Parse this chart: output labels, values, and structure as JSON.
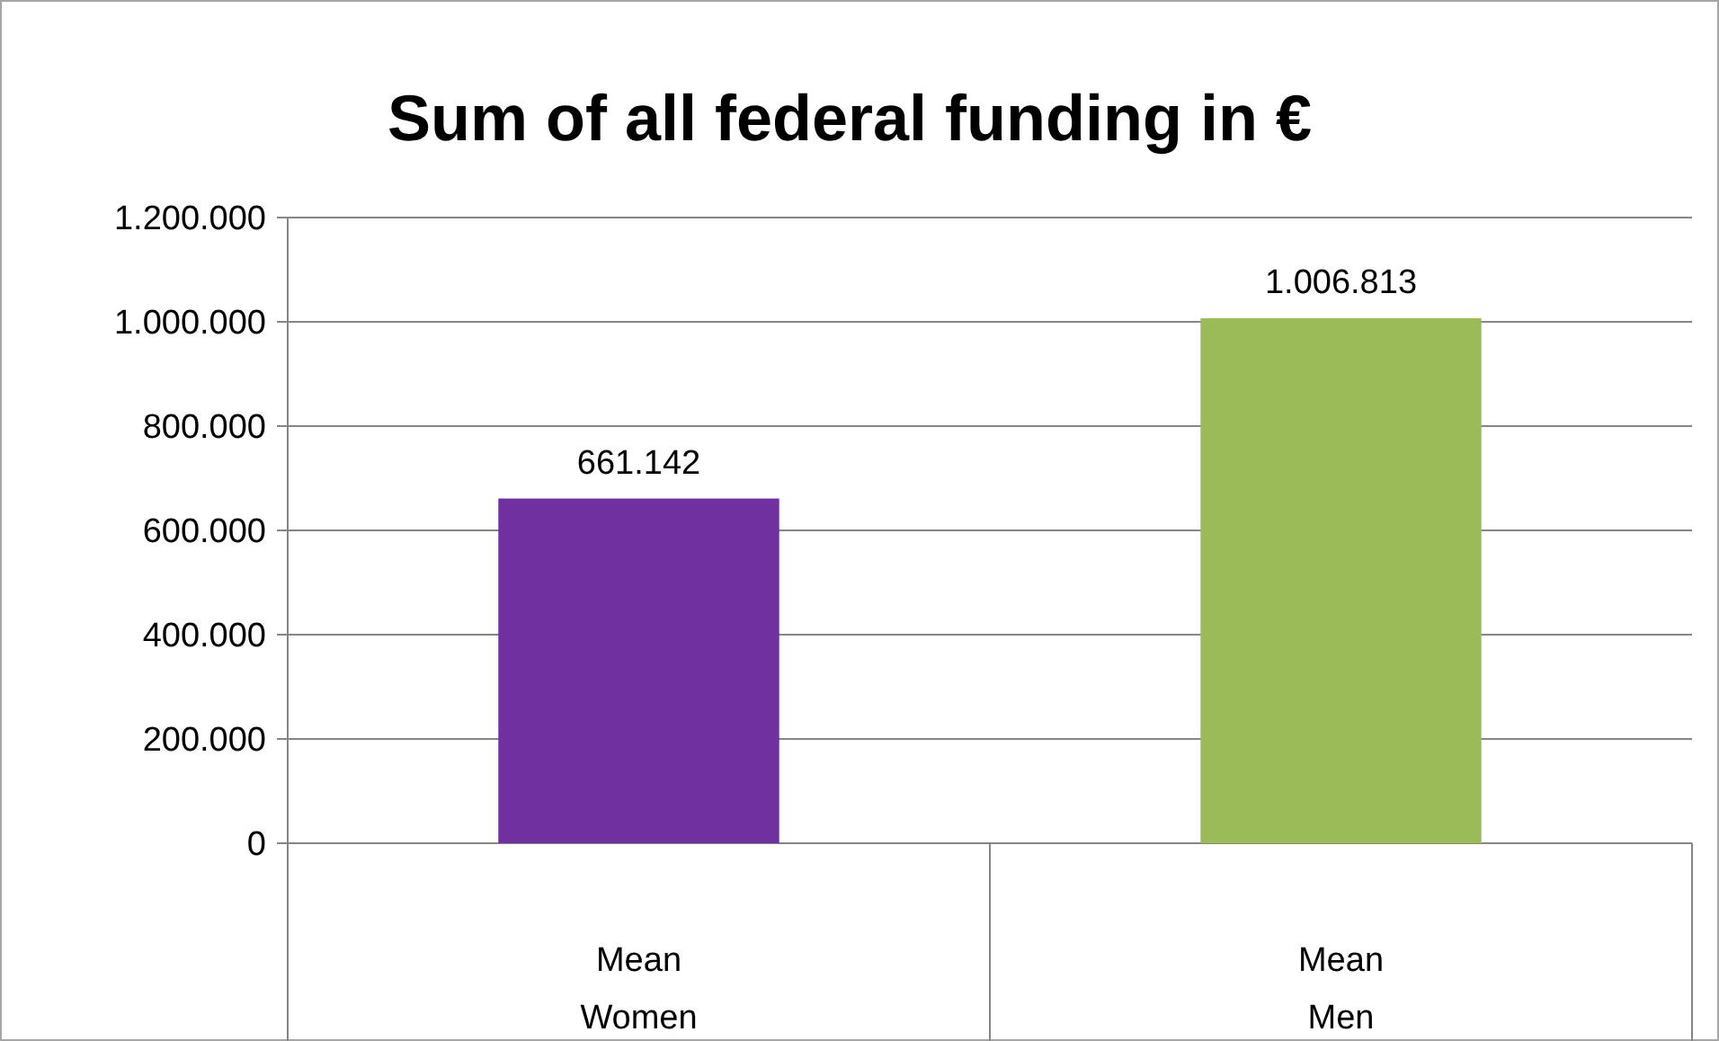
{
  "chart_data": {
    "type": "bar",
    "title": "Sum of all federal funding in €",
    "categories": [
      "Mean\nWomen",
      "Mean\nMen"
    ],
    "values": [
      661142,
      1006813
    ],
    "colors": [
      "#7030a0",
      "#9bbb59"
    ],
    "value_labels": [
      "661.142",
      "1.006.813"
    ],
    "ylim": [
      0,
      1200000
    ],
    "yticks": [
      {
        "value": 0,
        "label": "0"
      },
      {
        "value": 200000,
        "label": "200.000"
      },
      {
        "value": 400000,
        "label": "400.000"
      },
      {
        "value": 600000,
        "label": "600.000"
      },
      {
        "value": 800000,
        "label": "800.000"
      },
      {
        "value": 1000000,
        "label": "1.000.000"
      },
      {
        "value": 1200000,
        "label": "1.200.000"
      }
    ],
    "grid": "y"
  }
}
